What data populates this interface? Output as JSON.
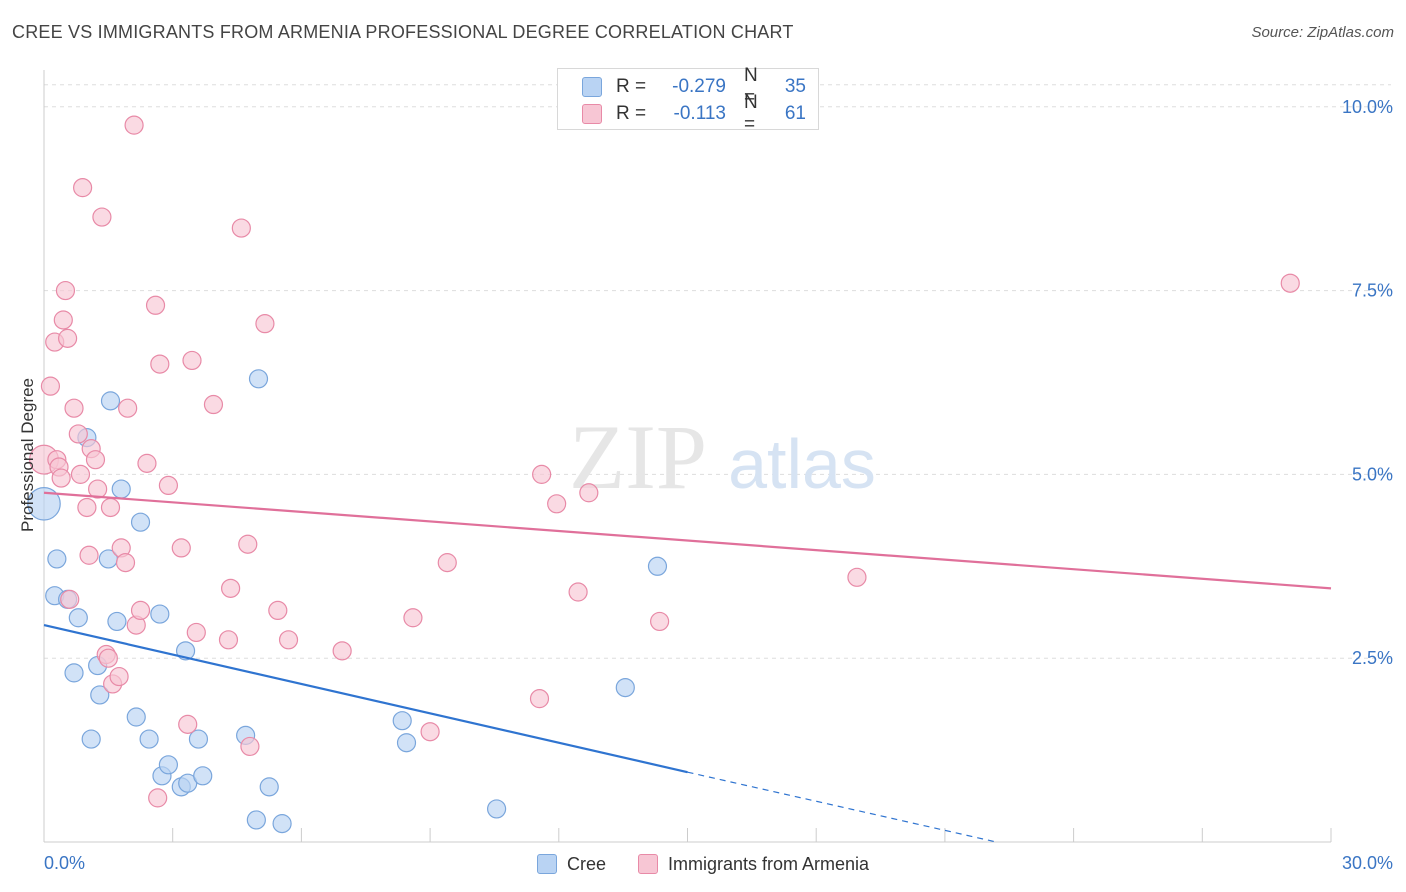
{
  "header": {
    "title": "CREE VS IMMIGRANTS FROM ARMENIA PROFESSIONAL DEGREE CORRELATION CHART",
    "source": "Source: ZipAtlas.com"
  },
  "watermark": {
    "zip": "ZIP",
    "atlas": "atlas"
  },
  "legend_top": {
    "rows": [
      {
        "r_label": "R =",
        "r_value": "-0.279",
        "n_label": "N =",
        "n_value": "35"
      },
      {
        "r_label": "R =",
        "r_value": "-0.113",
        "n_label": "N =",
        "n_value": "61"
      }
    ]
  },
  "legend_bottom": {
    "items": [
      {
        "label": "Cree"
      },
      {
        "label": "Immigrants from Armenia"
      }
    ]
  },
  "colors": {
    "cree_fill": "#b9d3f3",
    "cree_stroke": "#7aa6dc",
    "cree_line": "#2f74d0",
    "armenia_fill": "#f7c6d4",
    "armenia_stroke": "#e88aa7",
    "armenia_line": "#e0709a",
    "axis_label": "#3a75c4",
    "grid": "#dddddd"
  },
  "chart_data": {
    "type": "scatter",
    "title": "CREE VS IMMIGRANTS FROM ARMENIA PROFESSIONAL DEGREE CORRELATION CHART",
    "xlabel": "",
    "ylabel": "Professional Degree",
    "xlim": [
      0,
      30
    ],
    "ylim": [
      0,
      10.5
    ],
    "x_tick_labels": [
      "0.0%",
      "30.0%"
    ],
    "y_ticks": [
      2.5,
      5.0,
      7.5,
      10.0
    ],
    "y_tick_labels": [
      "2.5%",
      "5.0%",
      "7.5%",
      "10.0%"
    ],
    "grid": true,
    "legend_position": "top-center",
    "series": [
      {
        "name": "Cree",
        "r": -0.279,
        "n": 35,
        "trend": {
          "x0": 0,
          "y0": 2.95,
          "x1": 15,
          "y1": 0.95,
          "dashed_to_x": 22.2,
          "dashed_to_y": 0.0
        },
        "points": [
          [
            0,
            4.6,
            1.8
          ],
          [
            0.3,
            3.85,
            1
          ],
          [
            0.25,
            3.35,
            1
          ],
          [
            0.55,
            3.3,
            1
          ],
          [
            0.8,
            3.05,
            1
          ],
          [
            0.7,
            2.3,
            1
          ],
          [
            1.1,
            1.4,
            1
          ],
          [
            1.3,
            2.0,
            1
          ],
          [
            1.25,
            2.4,
            1
          ],
          [
            1.0,
            5.5,
            1
          ],
          [
            1.5,
            3.85,
            1
          ],
          [
            1.55,
            6.0,
            1
          ],
          [
            1.8,
            4.8,
            1
          ],
          [
            1.7,
            3.0,
            1
          ],
          [
            2.15,
            1.7,
            1
          ],
          [
            2.25,
            4.35,
            1
          ],
          [
            2.45,
            1.4,
            1
          ],
          [
            2.7,
            3.1,
            1
          ],
          [
            2.75,
            0.9,
            1
          ],
          [
            2.9,
            1.05,
            1
          ],
          [
            3.2,
            0.75,
            1
          ],
          [
            3.3,
            2.6,
            1
          ],
          [
            3.35,
            0.8,
            1
          ],
          [
            3.6,
            1.4,
            1
          ],
          [
            3.7,
            0.9,
            1
          ],
          [
            4.7,
            1.45,
            1
          ],
          [
            4.95,
            0.3,
            1
          ],
          [
            5.0,
            6.3,
            1
          ],
          [
            5.25,
            0.75,
            1
          ],
          [
            5.55,
            0.25,
            1
          ],
          [
            8.35,
            1.65,
            1
          ],
          [
            8.45,
            1.35,
            1
          ],
          [
            10.55,
            0.45,
            1
          ],
          [
            13.55,
            2.1,
            1
          ],
          [
            14.3,
            3.75,
            1
          ]
        ]
      },
      {
        "name": "Immigrants from Armenia",
        "r": -0.113,
        "n": 61,
        "trend": {
          "x0": 0,
          "y0": 4.75,
          "x1": 30,
          "y1": 3.45
        },
        "points": [
          [
            0,
            5.2,
            1.6
          ],
          [
            0.15,
            6.2,
            1
          ],
          [
            0.25,
            6.8,
            1
          ],
          [
            0.3,
            5.2,
            1
          ],
          [
            0.35,
            5.1,
            1
          ],
          [
            0.4,
            4.95,
            1
          ],
          [
            0.45,
            7.1,
            1
          ],
          [
            0.5,
            7.5,
            1
          ],
          [
            0.55,
            6.85,
            1
          ],
          [
            0.7,
            5.9,
            1
          ],
          [
            0.8,
            5.55,
            1
          ],
          [
            0.85,
            5.0,
            1
          ],
          [
            0.9,
            8.9,
            1
          ],
          [
            1.0,
            4.55,
            1
          ],
          [
            1.05,
            3.9,
            1
          ],
          [
            1.1,
            5.35,
            1
          ],
          [
            1.2,
            5.2,
            1
          ],
          [
            1.25,
            4.8,
            1
          ],
          [
            1.35,
            8.5,
            1
          ],
          [
            1.45,
            2.55,
            1
          ],
          [
            1.5,
            2.5,
            1
          ],
          [
            1.55,
            4.55,
            1
          ],
          [
            1.6,
            2.15,
            1
          ],
          [
            1.8,
            4.0,
            1
          ],
          [
            1.9,
            3.8,
            1
          ],
          [
            1.95,
            5.9,
            1
          ],
          [
            2.1,
            9.75,
            1
          ],
          [
            2.15,
            2.95,
            1
          ],
          [
            2.25,
            3.15,
            1
          ],
          [
            2.4,
            5.15,
            1
          ],
          [
            2.6,
            7.3,
            1
          ],
          [
            2.65,
            0.6,
            1
          ],
          [
            2.7,
            6.5,
            1
          ],
          [
            2.9,
            4.85,
            1
          ],
          [
            3.2,
            4.0,
            1
          ],
          [
            3.35,
            1.6,
            1
          ],
          [
            3.55,
            2.85,
            1
          ],
          [
            3.95,
            5.95,
            1
          ],
          [
            4.3,
            2.75,
            1
          ],
          [
            4.35,
            3.45,
            1
          ],
          [
            4.6,
            8.35,
            1
          ],
          [
            4.75,
            4.05,
            1
          ],
          [
            4.8,
            1.3,
            1
          ],
          [
            5.15,
            7.05,
            1
          ],
          [
            5.45,
            3.15,
            1
          ],
          [
            5.7,
            2.75,
            1
          ],
          [
            6.95,
            2.6,
            1
          ],
          [
            8.6,
            3.05,
            1
          ],
          [
            9.0,
            1.5,
            1
          ],
          [
            9.4,
            3.8,
            1
          ],
          [
            11.55,
            1.95,
            1
          ],
          [
            11.6,
            5.0,
            1
          ],
          [
            11.95,
            4.6,
            1
          ],
          [
            12.45,
            3.4,
            1
          ],
          [
            12.7,
            4.75,
            1
          ],
          [
            14.35,
            3.0,
            1
          ],
          [
            18.95,
            3.6,
            1
          ],
          [
            29.05,
            7.6,
            1
          ],
          [
            0.6,
            3.3,
            1
          ],
          [
            1.75,
            2.25,
            1
          ],
          [
            3.45,
            6.55,
            1
          ]
        ]
      }
    ]
  }
}
